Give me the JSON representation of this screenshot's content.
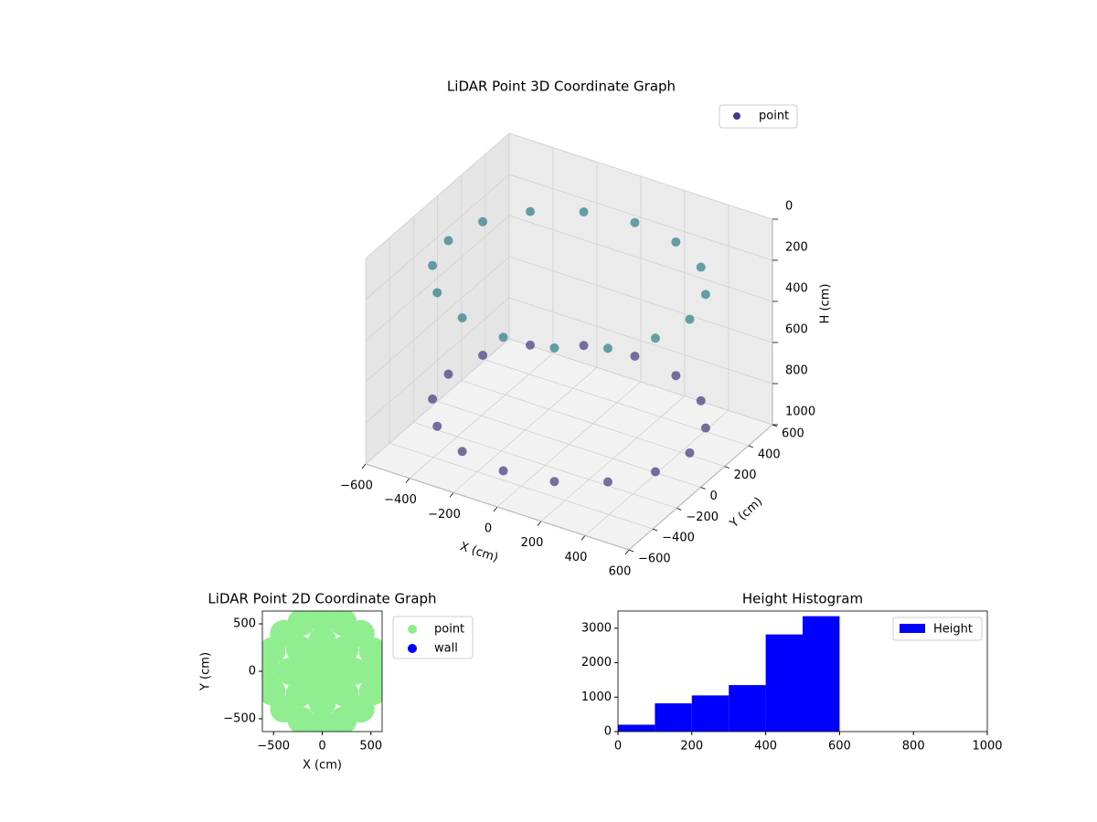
{
  "chart_data": [
    {
      "type": "scatter3d",
      "title": "LiDAR Point 3D Coordinate Graph",
      "xlabel": "X (cm)",
      "ylabel": "Y (cm)",
      "zlabel": "H (cm)",
      "xlim": [
        -600,
        600
      ],
      "ylim": [
        -600,
        600
      ],
      "zlim": [
        1000,
        0
      ],
      "xticks": [
        {
          "value": -600,
          "label": "−600"
        },
        {
          "value": -400,
          "label": "−400"
        },
        {
          "value": -200,
          "label": "−200"
        },
        0,
        200,
        400,
        600
      ],
      "yticks": [
        {
          "value": -600,
          "label": "−600"
        },
        {
          "value": -400,
          "label": "−400"
        },
        {
          "value": -200,
          "label": "−200"
        },
        0,
        200,
        400,
        600
      ],
      "zticks": [
        0,
        200,
        400,
        600,
        800,
        1000
      ],
      "cmap": [
        "#482878",
        "#21918c"
      ],
      "grid": true,
      "legend": "upper right",
      "series": [
        {
          "name": "point",
          "color": "#443983",
          "x": [
            550,
            508,
            389,
            210,
            0,
            -210,
            -389,
            -508,
            -550,
            -508,
            -389,
            -210,
            0,
            210,
            389,
            508,
            550,
            508,
            389,
            210,
            0,
            -210,
            -389,
            -508,
            -550,
            -508,
            -389,
            -210,
            0,
            210,
            389,
            508
          ],
          "y": [
            0,
            210,
            389,
            508,
            550,
            508,
            389,
            210,
            0,
            -210,
            -389,
            -508,
            -550,
            -508,
            -389,
            -210,
            0,
            210,
            389,
            508,
            550,
            508,
            389,
            210,
            0,
            -210,
            -389,
            -508,
            -550,
            -508,
            -389,
            -210
          ],
          "z": [
            200,
            200,
            200,
            200,
            200,
            200,
            200,
            200,
            200,
            200,
            200,
            200,
            200,
            200,
            200,
            200,
            850,
            850,
            850,
            850,
            850,
            850,
            850,
            850,
            850,
            850,
            850,
            850,
            850,
            850,
            850,
            850
          ]
        }
      ]
    },
    {
      "type": "scatter",
      "title": "LiDAR Point 2D Coordinate Graph",
      "xlabel": "X (cm)",
      "ylabel": "Y (cm)",
      "xlim": [
        -615,
        615
      ],
      "ylim": [
        -635,
        635
      ],
      "xticks": [
        {
          "value": -500,
          "label": "−500"
        },
        0,
        500
      ],
      "yticks": [
        {
          "value": -500,
          "label": "−500"
        },
        0,
        500
      ],
      "legend": "outside right",
      "series": [
        {
          "name": "point",
          "color": "#90ee90",
          "x": [
            0,
            140,
            0,
            -140,
            0,
            330,
            233,
            0,
            -233,
            -330,
            -233,
            0,
            233,
            560,
            517,
            396,
            214,
            0,
            -214,
            -396,
            -517,
            -560,
            -517,
            -396,
            -214,
            0,
            214,
            396,
            517
          ],
          "y": [
            0,
            0,
            140,
            0,
            -140,
            0,
            233,
            330,
            233,
            0,
            -233,
            -330,
            -233,
            0,
            214,
            396,
            517,
            560,
            517,
            396,
            214,
            0,
            -214,
            -396,
            -517,
            -560,
            -517,
            -396,
            -214
          ]
        },
        {
          "name": "wall",
          "color": "#0000ff",
          "x": [],
          "y": []
        }
      ]
    },
    {
      "type": "histogram",
      "title": "Height Histogram",
      "name": "Height",
      "color": "#0000ff",
      "bins": [
        0,
        100,
        200,
        300,
        400,
        500,
        600,
        700,
        800,
        900,
        1000
      ],
      "counts": [
        200,
        820,
        1050,
        1350,
        2820,
        3350,
        0,
        0,
        0,
        0
      ],
      "xlim": [
        0,
        1000
      ],
      "ylim": [
        0,
        3500
      ],
      "xticks": [
        0,
        200,
        400,
        600,
        800,
        1000
      ],
      "yticks": [
        0,
        1000,
        2000,
        3000
      ],
      "legend": "upper right"
    }
  ]
}
